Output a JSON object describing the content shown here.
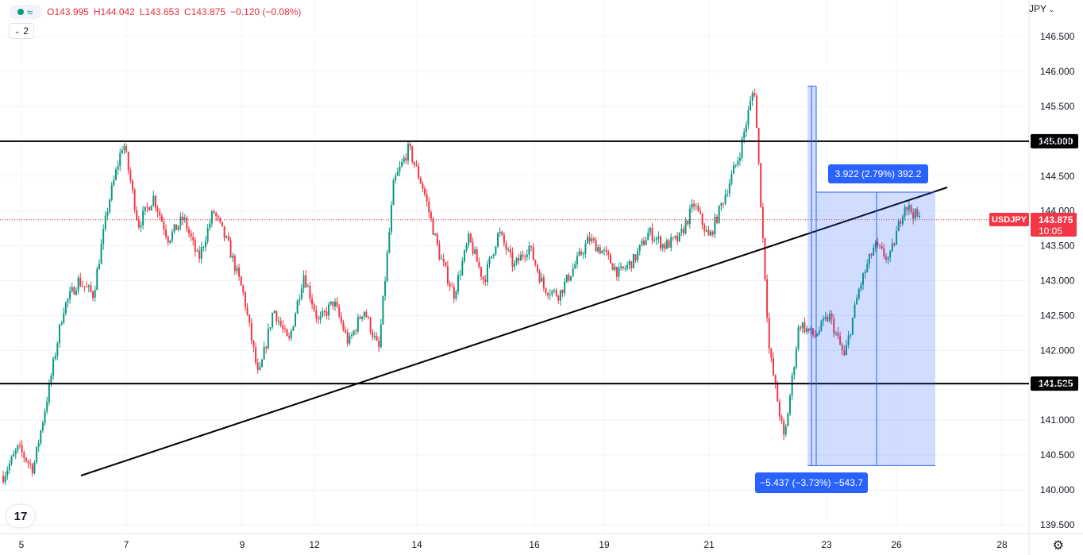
{
  "legend": {
    "open": "O143.995",
    "high": "H144.042",
    "low": "L143.653",
    "close": "C143.875",
    "change": "−0.120 (−0.08%)",
    "status_icon": "green-dot-icon",
    "wave_icon": "approx-wave-icon"
  },
  "indicator_count": "2",
  "currency": "JPY",
  "symbol_label": "USDJPY",
  "last_price": "143.875",
  "countdown": "10:05",
  "colors": {
    "up": "#089981",
    "down": "#f23645",
    "measure": "#2962ff",
    "hline": "#000000"
  },
  "chart_data": {
    "type": "candlestick",
    "symbol": "USDJPY",
    "y_ticks": [
      "146.500",
      "146.000",
      "145.500",
      "145.000",
      "144.500",
      "144.000",
      "143.500",
      "143.000",
      "142.500",
      "142.000",
      "141.500",
      "141.000",
      "140.500",
      "140.000",
      "139.500"
    ],
    "y_range": [
      139.3,
      146.85
    ],
    "x_ticks": [
      "5",
      "7",
      "9",
      "12",
      "14",
      "16",
      "19",
      "21",
      "23",
      "26",
      "28"
    ],
    "horizontal_levels": [
      {
        "value": 145.0,
        "label": "145.000"
      },
      {
        "value": 141.525,
        "label": "141.525"
      }
    ],
    "trendline": {
      "from": {
        "x": "6 (late)",
        "y": 140.2
      },
      "to": {
        "x": "26 (late)",
        "y": 144.3
      }
    },
    "measures": [
      {
        "label": "3.922 (2.79%) 392.2",
        "from": 140.35,
        "to": 144.27,
        "direction": "up"
      },
      {
        "label": "−5.437 (−3.73%) −543.7",
        "from": 145.79,
        "to": 140.35,
        "direction": "down"
      }
    ],
    "price_path": [
      140.2,
      140.6,
      140.3,
      141.4,
      142.6,
      143.0,
      142.8,
      144.1,
      145.0,
      143.8,
      144.2,
      143.6,
      143.9,
      143.3,
      144.0,
      143.5,
      142.8,
      141.6,
      142.6,
      142.1,
      143.1,
      142.4,
      142.7,
      142.1,
      142.6,
      142.0,
      144.4,
      144.9,
      144.3,
      143.4,
      142.8,
      143.6,
      143.0,
      143.7,
      143.2,
      143.5,
      142.9,
      142.8,
      143.2,
      143.6,
      143.4,
      143.1,
      143.3,
      143.7,
      143.5,
      143.6,
      144.1,
      143.6,
      144.2,
      144.8,
      145.8,
      142.0,
      140.7,
      142.4,
      142.2,
      142.5,
      141.9,
      142.9,
      143.5,
      143.3,
      144.1,
      143.875
    ]
  }
}
